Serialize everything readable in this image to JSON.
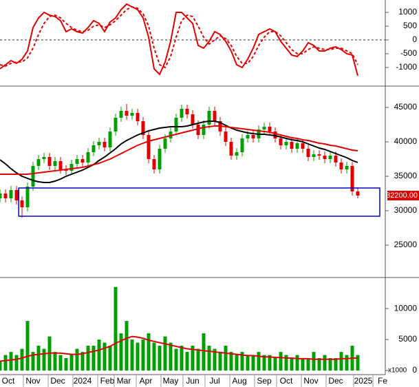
{
  "chart_data": [
    {
      "type": "line",
      "x": [
        0,
        1,
        2,
        3,
        4,
        5,
        6,
        7,
        8,
        9,
        10,
        11,
        12,
        13,
        14,
        15,
        16,
        17,
        18,
        19,
        20,
        21,
        22,
        23,
        24,
        25,
        26,
        27,
        28,
        29,
        30,
        31,
        32,
        33,
        34,
        35,
        36,
        37,
        38,
        39,
        40,
        41,
        42,
        43,
        44,
        45,
        46,
        47,
        48,
        49,
        50,
        51,
        52,
        53,
        54,
        55,
        56,
        57,
        58,
        59,
        60,
        61,
        62,
        63,
        64,
        65
      ],
      "xlim": [
        0,
        70
      ],
      "ylim": [
        -1600,
        1450
      ],
      "yticks": [
        1000,
        500,
        0,
        -500,
        -1000
      ],
      "hline": 0,
      "series": [
        {
          "color": "#e00000",
          "line_style": "solid",
          "values": [
            -1050,
            -900,
            -750,
            -850,
            -700,
            -400,
            450,
            800,
            1000,
            900,
            850,
            700,
            300,
            400,
            300,
            250,
            450,
            700,
            600,
            300,
            650,
            800,
            1100,
            1300,
            1200,
            1100,
            800,
            100,
            -1050,
            -1250,
            -800,
            -50,
            1000,
            1000,
            800,
            600,
            -200,
            -300,
            -50,
            300,
            200,
            -50,
            -400,
            -900,
            -1000,
            -700,
            -300,
            200,
            300,
            400,
            300,
            -50,
            -300,
            -550,
            -600,
            -400,
            -100,
            -200,
            -400,
            -400,
            -300,
            -250,
            -350,
            -500,
            -550,
            -1300
          ]
        },
        {
          "color": "#e00000",
          "line_style": "dashed",
          "values": [
            -900,
            -950,
            -850,
            -800,
            -800,
            -650,
            -300,
            200,
            600,
            850,
            900,
            800,
            600,
            450,
            350,
            300,
            350,
            500,
            550,
            450,
            550,
            700,
            900,
            1100,
            1200,
            1150,
            950,
            500,
            -300,
            -900,
            -1000,
            -600,
            100,
            700,
            900,
            850,
            500,
            100,
            -150,
            0,
            150,
            50,
            -200,
            -600,
            -850,
            -850,
            -600,
            -200,
            100,
            300,
            300,
            150,
            -100,
            -350,
            -500,
            -500,
            -350,
            -250,
            -300,
            -350,
            -350,
            -300,
            -300,
            -400,
            -500,
            -900
          ]
        }
      ]
    },
    {
      "type": "candlestick",
      "x": [
        0,
        1,
        2,
        3,
        4,
        5,
        6,
        7,
        8,
        9,
        10,
        11,
        12,
        13,
        14,
        15,
        16,
        17,
        18,
        19,
        20,
        21,
        22,
        23,
        24,
        25,
        26,
        27,
        28,
        29,
        30,
        31,
        32,
        33,
        34,
        35,
        36,
        37,
        38,
        39,
        40,
        41,
        42,
        43,
        44,
        45,
        46,
        47,
        48,
        49,
        50,
        51,
        52,
        53,
        54,
        55,
        56,
        57,
        58,
        59,
        60,
        61,
        62,
        63,
        64,
        65
      ],
      "xlim": [
        0,
        70
      ],
      "ylim": [
        20600,
        47800
      ],
      "yticks": [
        45000,
        40000,
        35000,
        30000,
        25000
      ],
      "up_color": "#00a000",
      "down_color": "#e00000",
      "open": [
        31800,
        32500,
        31800,
        33000,
        31500,
        30500,
        33500,
        36500,
        37500,
        37800,
        36500,
        37200,
        36000,
        35800,
        36800,
        37500,
        37000,
        38500,
        39500,
        40000,
        39200,
        41500,
        43500,
        44500,
        43800,
        44200,
        43000,
        41000,
        37500,
        36000,
        39000,
        40500,
        41500,
        43500,
        44800,
        44000,
        42500,
        41000,
        42500,
        44500,
        43000,
        41500,
        40000,
        38000,
        38500,
        40500,
        41000,
        40500,
        41800,
        42200,
        41500,
        40500,
        39500,
        40000,
        39000,
        39800,
        39000,
        37800,
        38200,
        38000,
        37500,
        38000,
        37000,
        36000,
        36500,
        32800
      ],
      "high": [
        33100,
        33100,
        33600,
        33600,
        32100,
        34100,
        37100,
        38100,
        38400,
        38400,
        37800,
        37800,
        36600,
        37400,
        38100,
        38100,
        39100,
        40100,
        40600,
        40600,
        42100,
        44100,
        45100,
        45500,
        44800,
        44800,
        43600,
        41600,
        38100,
        39600,
        41100,
        42100,
        44100,
        45400,
        45400,
        44600,
        43100,
        43100,
        45100,
        45100,
        43600,
        42100,
        40600,
        39100,
        41100,
        41600,
        41600,
        42400,
        42800,
        42800,
        42100,
        41100,
        40600,
        40600,
        40400,
        40400,
        39600,
        38800,
        38800,
        38600,
        38600,
        38600,
        37600,
        37100,
        37100,
        33400
      ],
      "low": [
        31200,
        31200,
        31200,
        30900,
        29000,
        29900,
        32900,
        35900,
        36900,
        35900,
        35900,
        35400,
        35200,
        35200,
        36200,
        36400,
        36400,
        37900,
        38900,
        38600,
        38600,
        40900,
        42900,
        43200,
        43200,
        42400,
        40400,
        36900,
        35400,
        35400,
        38400,
        39900,
        40900,
        42900,
        43400,
        41900,
        40400,
        40400,
        41900,
        42400,
        40900,
        39400,
        37400,
        37400,
        37900,
        39900,
        39900,
        39900,
        41200,
        40900,
        39900,
        38900,
        38900,
        38400,
        38400,
        38400,
        37200,
        37200,
        37400,
        36900,
        36900,
        36400,
        35400,
        35400,
        32200,
        31800
      ],
      "close": [
        32500,
        31800,
        33000,
        31500,
        30500,
        33500,
        36500,
        37500,
        37800,
        36500,
        37200,
        36000,
        35800,
        36800,
        37500,
        37000,
        38500,
        39500,
        40000,
        39200,
        41500,
        43500,
        44500,
        43800,
        44200,
        43000,
        41000,
        37500,
        36000,
        39000,
        40500,
        41500,
        43500,
        44800,
        44000,
        42500,
        41000,
        42500,
        44500,
        43000,
        41500,
        40000,
        38000,
        38500,
        40500,
        41000,
        40500,
        41800,
        42200,
        41500,
        40500,
        39500,
        40000,
        39000,
        39800,
        39000,
        37800,
        38200,
        38000,
        37500,
        38000,
        37000,
        36000,
        36500,
        32800,
        32200
      ],
      "series": [
        {
          "color": "#000000",
          "values": [
            37400,
            36800,
            36100,
            35500,
            35000,
            34700,
            34400,
            34200,
            34100,
            34100,
            34300,
            34600,
            35000,
            35300,
            35600,
            35900,
            36300,
            36700,
            37300,
            37800,
            38400,
            39000,
            39700,
            40200,
            40600,
            41000,
            41300,
            41600,
            41800,
            42000,
            42100,
            42200,
            42200,
            42200,
            42300,
            42500,
            42700,
            42900,
            43000,
            43000,
            42800,
            42400,
            42000,
            41700,
            41500,
            41300,
            41200,
            41100,
            41100,
            41000,
            40900,
            40700,
            40500,
            40300,
            40200,
            40000,
            39700,
            39400,
            39100,
            38900,
            38600,
            38300,
            38000,
            37700,
            37300,
            37000
          ]
        },
        {
          "color": "#e00000",
          "values": [
            35300,
            35300,
            35300,
            35300,
            35300,
            35300,
            35400,
            35500,
            35600,
            35700,
            35800,
            35900,
            36000,
            36100,
            36200,
            36300,
            36500,
            36700,
            36900,
            37200,
            37500,
            37900,
            38300,
            38700,
            39100,
            39500,
            39800,
            40100,
            40300,
            40500,
            40700,
            40900,
            41100,
            41300,
            41500,
            41700,
            41900,
            42100,
            42200,
            42300,
            42300,
            42200,
            42100,
            42000,
            41900,
            41800,
            41700,
            41600,
            41500,
            41400,
            41200,
            41000,
            40800,
            40600,
            40500,
            40300,
            40200,
            40000,
            39800,
            39700,
            39500,
            39400,
            39200,
            39000,
            38800,
            38700
          ]
        }
      ],
      "box": {
        "x0": 3.4,
        "x1": 69,
        "y0": 29200,
        "y1": 33300,
        "color": "#0000cc"
      },
      "last_value_label": "32200.00"
    },
    {
      "type": "bar",
      "x": [
        0,
        1,
        2,
        3,
        4,
        5,
        6,
        7,
        8,
        9,
        10,
        11,
        12,
        13,
        14,
        15,
        16,
        17,
        18,
        19,
        20,
        21,
        22,
        23,
        24,
        25,
        26,
        27,
        28,
        29,
        30,
        31,
        32,
        33,
        34,
        35,
        36,
        37,
        38,
        39,
        40,
        41,
        42,
        43,
        44,
        45,
        46,
        47,
        48,
        49,
        50,
        51,
        52,
        53,
        54,
        55,
        56,
        57,
        58,
        59,
        60,
        61,
        62,
        63,
        64,
        65
      ],
      "xlim": [
        0,
        70
      ],
      "ylim": [
        0,
        14800
      ],
      "yticks": [
        0,
        5000,
        10000
      ],
      "unit_label": "x1000",
      "color": "#00a000",
      "values": [
        1500,
        2500,
        3000,
        2500,
        3500,
        8000,
        3000,
        4000,
        3500,
        5500,
        3000,
        2500,
        2000,
        2500,
        3500,
        3000,
        4000,
        4000,
        5000,
        4500,
        4000,
        13500,
        6000,
        8000,
        5000,
        4500,
        5000,
        6000,
        4500,
        4000,
        5500,
        4500,
        3500,
        4000,
        3000,
        4000,
        3500,
        6000,
        4000,
        3500,
        3000,
        4000,
        3000,
        2500,
        3000,
        2500,
        2500,
        3000,
        2500,
        2500,
        2000,
        3000,
        2500,
        2000,
        2500,
        2000,
        2000,
        3000,
        2000,
        2500,
        2000,
        2000,
        3000,
        2500,
        4000,
        2500
      ],
      "series": [
        {
          "color": "#e00000",
          "values": [
            1500,
            1600,
            1700,
            1800,
            2000,
            2300,
            2500,
            2600,
            2700,
            2800,
            2800,
            2800,
            2700,
            2600,
            2600,
            2700,
            2900,
            3100,
            3300,
            3600,
            3900,
            4400,
            4800,
            5200,
            5500,
            5400,
            5200,
            4900,
            4700,
            4500,
            4300,
            4100,
            3900,
            3700,
            3500,
            3400,
            3300,
            3200,
            3100,
            3000,
            2900,
            2800,
            2700,
            2600,
            2500,
            2400,
            2400,
            2300,
            2200,
            2200,
            2100,
            2100,
            2000,
            2000,
            1900,
            1900,
            1900,
            1800,
            1800,
            1800,
            1800,
            1800,
            1900,
            1900,
            2000,
            2000
          ]
        }
      ],
      "xticks": [
        {
          "value": 1.5,
          "label": "Oct"
        },
        {
          "value": 6,
          "label": "Nov"
        },
        {
          "value": 10.5,
          "label": "Dec"
        },
        {
          "value": 15,
          "label": "2024"
        },
        {
          "value": 19.5,
          "label": "Feb"
        },
        {
          "value": 22.5,
          "label": "Mar"
        },
        {
          "value": 26.5,
          "label": "Apr"
        },
        {
          "value": 31,
          "label": "May"
        },
        {
          "value": 35,
          "label": "Jun"
        },
        {
          "value": 39,
          "label": "Jul"
        },
        {
          "value": 43.5,
          "label": "Aug"
        },
        {
          "value": 48,
          "label": "Sep"
        },
        {
          "value": 52,
          "label": "Oct"
        },
        {
          "value": 56.5,
          "label": "Nov"
        },
        {
          "value": 61,
          "label": "Dec"
        },
        {
          "value": 66,
          "label": "2025"
        },
        {
          "value": 69.5,
          "label": "Fe"
        }
      ]
    }
  ]
}
